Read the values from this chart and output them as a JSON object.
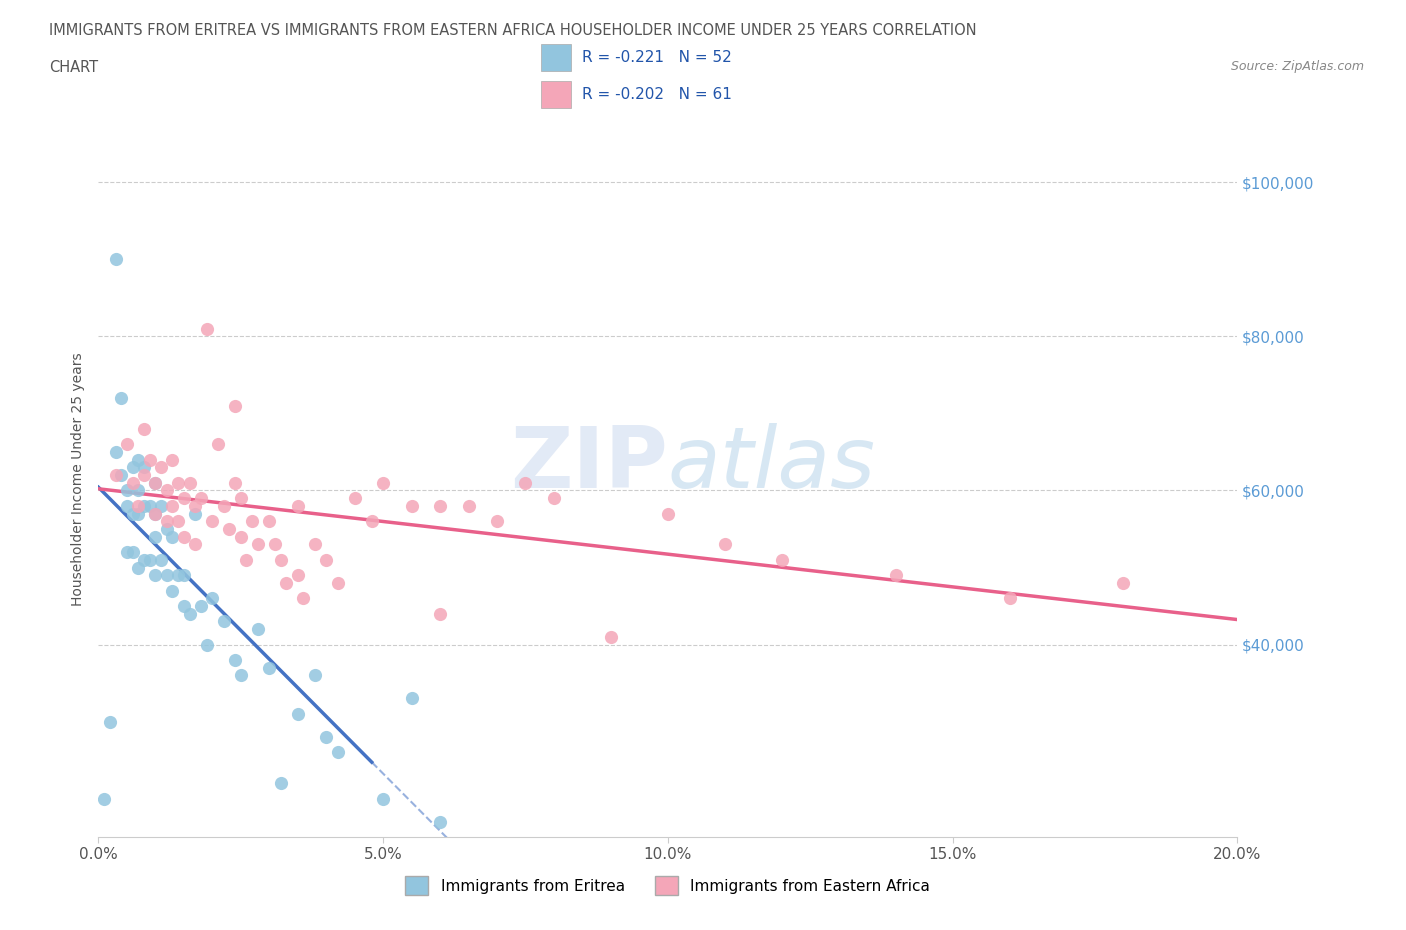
{
  "title_line1": "IMMIGRANTS FROM ERITREA VS IMMIGRANTS FROM EASTERN AFRICA HOUSEHOLDER INCOME UNDER 25 YEARS CORRELATION",
  "title_line2": "CHART",
  "source_text": "Source: ZipAtlas.com",
  "ylabel": "Householder Income Under 25 years",
  "xmin": 0.0,
  "xmax": 0.2,
  "ymin": 15000,
  "ymax": 108000,
  "ytick_vals": [
    40000,
    60000,
    80000,
    100000
  ],
  "ytick_labels": [
    "$40,000",
    "$60,000",
    "$80,000",
    "$100,000"
  ],
  "xticks": [
    0.0,
    0.05,
    0.1,
    0.15,
    0.2
  ],
  "xtick_labels": [
    "0.0%",
    "5.0%",
    "10.0%",
    "15.0%",
    "20.0%"
  ],
  "eritrea_color": "#92C5DE",
  "eastern_africa_color": "#F4A6B8",
  "eritrea_line_color": "#4472C4",
  "eastern_line_color": "#E8608A",
  "eritrea_R": -0.221,
  "eritrea_N": 52,
  "eastern_africa_R": -0.202,
  "eastern_africa_N": 61,
  "legend_eritrea": "Immigrants from Eritrea",
  "legend_eastern_africa": "Immigrants from Eastern Africa",
  "watermark": "ZIPatlas",
  "grid_color": "#CCCCCC",
  "eritrea_scatter_x": [
    0.001,
    0.002,
    0.003,
    0.003,
    0.004,
    0.004,
    0.005,
    0.005,
    0.005,
    0.006,
    0.006,
    0.006,
    0.007,
    0.007,
    0.007,
    0.007,
    0.008,
    0.008,
    0.008,
    0.009,
    0.009,
    0.01,
    0.01,
    0.01,
    0.01,
    0.011,
    0.011,
    0.012,
    0.012,
    0.013,
    0.013,
    0.014,
    0.015,
    0.015,
    0.016,
    0.017,
    0.018,
    0.019,
    0.02,
    0.022,
    0.024,
    0.025,
    0.028,
    0.03,
    0.032,
    0.035,
    0.038,
    0.04,
    0.042,
    0.05,
    0.055,
    0.06
  ],
  "eritrea_scatter_y": [
    20000,
    30000,
    90000,
    65000,
    72000,
    62000,
    60000,
    58000,
    52000,
    63000,
    57000,
    52000,
    64000,
    60000,
    57000,
    50000,
    63000,
    58000,
    51000,
    58000,
    51000,
    61000,
    57000,
    54000,
    49000,
    58000,
    51000,
    55000,
    49000,
    54000,
    47000,
    49000,
    49000,
    45000,
    44000,
    57000,
    45000,
    40000,
    46000,
    43000,
    38000,
    36000,
    42000,
    37000,
    22000,
    31000,
    36000,
    28000,
    26000,
    20000,
    33000,
    17000
  ],
  "eastern_africa_scatter_x": [
    0.003,
    0.005,
    0.006,
    0.007,
    0.008,
    0.008,
    0.009,
    0.01,
    0.01,
    0.011,
    0.012,
    0.012,
    0.013,
    0.013,
    0.014,
    0.014,
    0.015,
    0.015,
    0.016,
    0.017,
    0.017,
    0.018,
    0.019,
    0.02,
    0.021,
    0.022,
    0.023,
    0.024,
    0.025,
    0.025,
    0.026,
    0.027,
    0.028,
    0.03,
    0.031,
    0.032,
    0.033,
    0.035,
    0.036,
    0.038,
    0.04,
    0.042,
    0.045,
    0.048,
    0.05,
    0.055,
    0.06,
    0.065,
    0.07,
    0.075,
    0.08,
    0.09,
    0.1,
    0.11,
    0.12,
    0.14,
    0.16,
    0.18,
    0.024,
    0.035,
    0.06
  ],
  "eastern_africa_scatter_y": [
    62000,
    66000,
    61000,
    58000,
    68000,
    62000,
    64000,
    61000,
    57000,
    63000,
    60000,
    56000,
    64000,
    58000,
    61000,
    56000,
    59000,
    54000,
    61000,
    58000,
    53000,
    59000,
    81000,
    56000,
    66000,
    58000,
    55000,
    61000,
    54000,
    59000,
    51000,
    56000,
    53000,
    56000,
    53000,
    51000,
    48000,
    49000,
    46000,
    53000,
    51000,
    48000,
    59000,
    56000,
    61000,
    58000,
    44000,
    58000,
    56000,
    61000,
    59000,
    41000,
    57000,
    53000,
    51000,
    49000,
    46000,
    48000,
    71000,
    58000,
    58000
  ]
}
